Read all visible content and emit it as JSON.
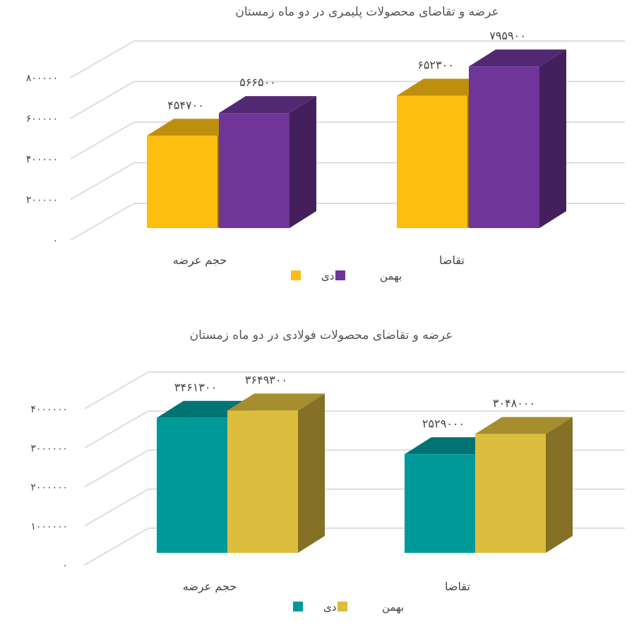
{
  "chart_data": [
    {
      "type": "bar",
      "title": "عرضه و تقاضای محصولات پلیمری در دو ماه زمستان",
      "categories": [
        "حجم عرضه",
        "تقاضا"
      ],
      "series": [
        {
          "name": "دی",
          "values": [
            454700,
            652300
          ],
          "color": "#FDBE10",
          "labels": [
            "۴۵۴۷۰۰",
            "۶۵۲۳۰۰"
          ]
        },
        {
          "name": "بهمن",
          "values": [
            566500,
            795900
          ],
          "color": "#6F3598",
          "labels": [
            "۵۶۶۵۰۰",
            "۷۹۵۹۰۰"
          ]
        }
      ],
      "yticks": [
        "۰",
        "۲۰۰۰۰۰",
        "۴۰۰۰۰۰",
        "۶۰۰۰۰۰",
        "۸۰۰۰۰۰"
      ],
      "ytick_values": [
        0,
        200000,
        400000,
        600000,
        800000
      ],
      "ylim": [
        0,
        800000
      ],
      "grid": true,
      "legend": "bottom",
      "style": "3d"
    },
    {
      "type": "bar",
      "title": "عرضه و تقاضای محصولات فولادی در دو ماه زمستان",
      "categories": [
        "حجم عرضه",
        "تقاضا"
      ],
      "series": [
        {
          "name": "دی",
          "values": [
            3461300,
            2529000
          ],
          "color": "#00999A",
          "labels": [
            "۳۴۶۱۳۰۰",
            "۲۵۲۹۰۰۰"
          ]
        },
        {
          "name": "بهمن",
          "values": [
            3649300,
            3048000
          ],
          "color": "#DDBD3D",
          "labels": [
            "۳۶۴۹۳۰۰",
            "۳۰۴۸۰۰۰"
          ]
        }
      ],
      "yticks": [
        "۰",
        "۱۰۰۰۰۰۰",
        "۲۰۰۰۰۰۰",
        "۳۰۰۰۰۰۰",
        "۴۰۰۰۰۰۰"
      ],
      "ytick_values": [
        0,
        1000000,
        2000000,
        3000000,
        4000000
      ],
      "ylim": [
        0,
        4000000
      ],
      "grid": true,
      "legend": "bottom",
      "style": "3d"
    }
  ]
}
